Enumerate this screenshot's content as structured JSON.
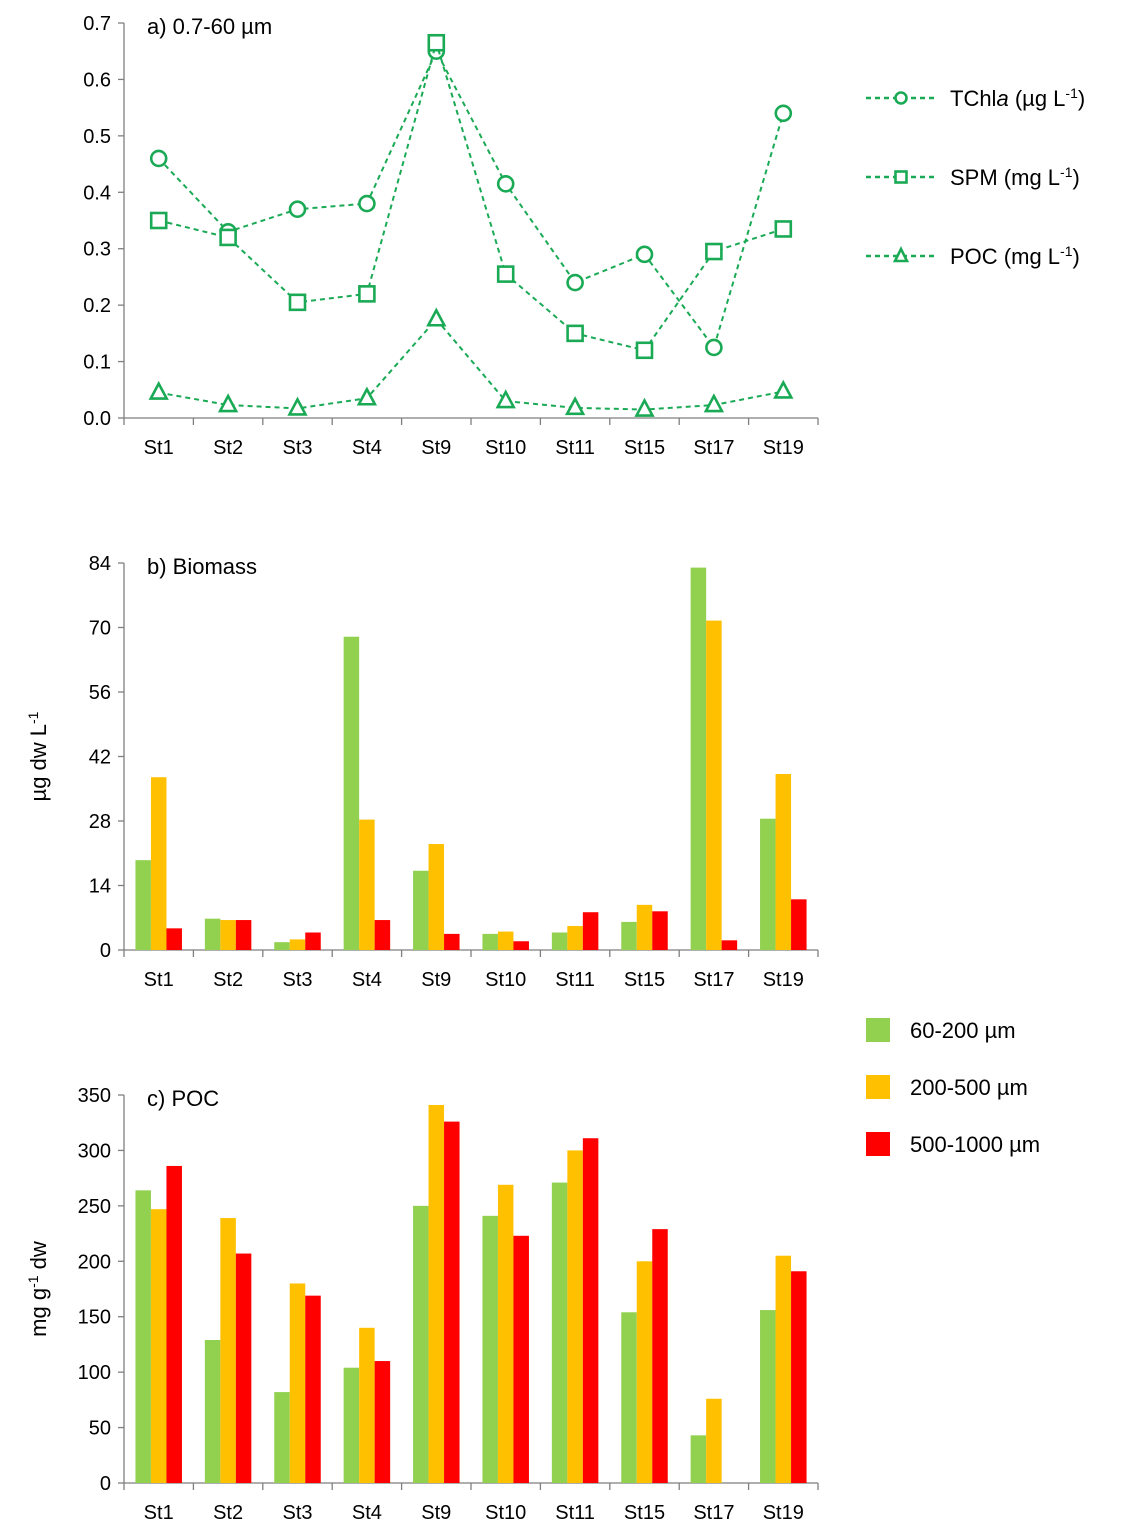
{
  "legend_line": [
    {
      "label": "TChl",
      "label_italic": "a",
      "unit": " (µg L",
      "sup": "-1",
      "close": ")"
    },
    {
      "label": "SPM",
      "label_italic": "",
      "unit": " (mg L",
      "sup": "-1",
      "close": ")"
    },
    {
      "label": "POC",
      "label_italic": "",
      "unit": " (mg L",
      "sup": "-1",
      "close": ")"
    }
  ],
  "legend_bar": [
    "60-200 µm",
    "200-500 µm",
    "500-1000 µm"
  ],
  "chart_data": [
    {
      "type": "line",
      "title": "a) 0.7-60 µm",
      "categories": [
        "St1",
        "St2",
        "St3",
        "St4",
        "St9",
        "St10",
        "St11",
        "St15",
        "St17",
        "St19"
      ],
      "ylim": [
        0,
        0.7
      ],
      "yticks": [
        "0.0",
        "0.1",
        "0.2",
        "0.3",
        "0.4",
        "0.5",
        "0.6",
        "0.7"
      ],
      "ylabel": "",
      "line_color": "#1aaa55",
      "legend_placement": "right",
      "series": [
        {
          "name": "TChla (µg L-1)",
          "marker": "circle",
          "values": [
            0.46,
            0.33,
            0.37,
            0.38,
            0.65,
            0.415,
            0.24,
            0.29,
            0.125,
            0.54
          ]
        },
        {
          "name": "SPM (mg L-1)",
          "marker": "square",
          "values": [
            0.35,
            0.32,
            0.205,
            0.22,
            0.665,
            0.255,
            0.15,
            0.12,
            0.295,
            0.335
          ]
        },
        {
          "name": "POC (mg L-1)",
          "marker": "triangle",
          "values": [
            0.045,
            0.023,
            0.017,
            0.035,
            0.175,
            0.03,
            0.018,
            0.015,
            0.023,
            0.047
          ]
        }
      ]
    },
    {
      "type": "bar",
      "title": "b) Biomass",
      "categories": [
        "St1",
        "St2",
        "St3",
        "St4",
        "St9",
        "St10",
        "St11",
        "St15",
        "St17",
        "St19"
      ],
      "ylim": [
        0,
        84
      ],
      "yticks": [
        "0",
        "14",
        "28",
        "42",
        "56",
        "70",
        "84"
      ],
      "ylabel": "µg dw L",
      "ylabel_sup": "-1",
      "series": [
        {
          "name": "60-200 µm",
          "color": "#92d050",
          "values": [
            19.5,
            6.8,
            1.7,
            68,
            17.2,
            3.5,
            3.8,
            6.1,
            83,
            28.5
          ]
        },
        {
          "name": "200-500 µm",
          "color": "#ffc000",
          "values": [
            37.5,
            6.5,
            2.3,
            28.3,
            23,
            4,
            5.2,
            9.8,
            71.5,
            38.2
          ]
        },
        {
          "name": "500-1000 µm",
          "color": "#ff0000",
          "values": [
            4.7,
            6.5,
            3.8,
            6.5,
            3.5,
            1.9,
            8.2,
            8.4,
            2.1,
            11
          ]
        }
      ]
    },
    {
      "type": "bar",
      "title": "c) POC",
      "categories": [
        "St1",
        "St2",
        "St3",
        "St4",
        "St9",
        "St10",
        "St11",
        "St15",
        "St17",
        "St19"
      ],
      "ylim": [
        0,
        350
      ],
      "yticks": [
        "0",
        "50",
        "100",
        "150",
        "200",
        "250",
        "300",
        "350"
      ],
      "ylabel": "mg g",
      "ylabel_sup": "-1",
      "ylabel_tail": " dw",
      "series": [
        {
          "name": "60-200 µm",
          "color": "#92d050",
          "values": [
            264,
            129,
            82,
            104,
            250,
            241,
            271,
            154,
            43,
            156
          ]
        },
        {
          "name": "200-500 µm",
          "color": "#ffc000",
          "values": [
            247,
            239,
            180,
            140,
            341,
            269,
            300,
            200,
            76,
            205
          ]
        },
        {
          "name": "500-1000 µm",
          "color": "#ff0000",
          "values": [
            286,
            207,
            169,
            110,
            326,
            223,
            311,
            229,
            null,
            191
          ]
        }
      ]
    }
  ]
}
